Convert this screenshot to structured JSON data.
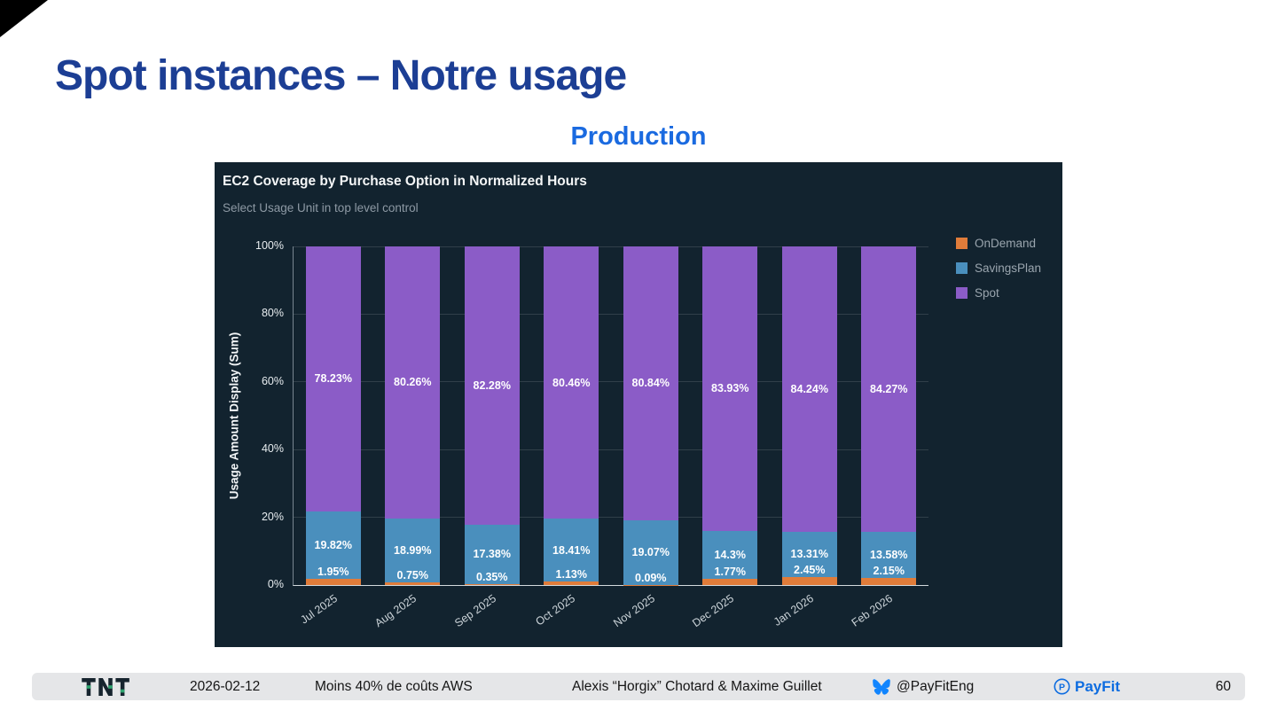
{
  "slide": {
    "title": "Spot instances – Notre usage",
    "subtitle": "Production"
  },
  "colors": {
    "title_navy": "#1c3e94",
    "subtitle_blue": "#1a6ae0",
    "panel_background": "#12232f",
    "payfit_blue": "#0d6ce0",
    "bluesky_blue": "#1185fe",
    "ondemand_orange": "#e07c3a",
    "savingsplan_blue": "#4a8fbd",
    "spot_purple": "#8b5cc7"
  },
  "chart_data": {
    "type": "bar",
    "stacked": true,
    "title": "EC2 Coverage by Purchase Option in Normalized Hours",
    "subtitle": "Select Usage Unit in top level control",
    "xlabel": "",
    "ylabel": "Usage Amount Display (Sum)",
    "ylim": [
      0,
      100
    ],
    "yticks": [
      "0%",
      "20%",
      "40%",
      "60%",
      "80%",
      "100%"
    ],
    "grid": true,
    "legend_position": "right",
    "categories": [
      "Jul 2025",
      "Aug 2025",
      "Sep 2025",
      "Oct 2025",
      "Nov 2025",
      "Dec 2025",
      "Jan 2026",
      "Feb 2026"
    ],
    "series": [
      {
        "name": "OnDemand",
        "color": "#e07c3a",
        "values": [
          1.95,
          0.75,
          0.35,
          1.13,
          0.09,
          1.77,
          2.45,
          2.15
        ],
        "labels": [
          "1.95%",
          "0.75%",
          "0.35%",
          "1.13%",
          "0.09%",
          "1.77%",
          "2.45%",
          "2.15%"
        ]
      },
      {
        "name": "SavingsPlan",
        "color": "#4a8fbd",
        "values": [
          19.82,
          18.99,
          17.38,
          18.41,
          19.07,
          14.3,
          13.31,
          13.58
        ],
        "labels": [
          "19.82%",
          "18.99%",
          "17.38%",
          "18.41%",
          "19.07%",
          "14.3%",
          "13.31%",
          "13.58%"
        ]
      },
      {
        "name": "Spot",
        "color": "#8b5cc7",
        "values": [
          78.23,
          80.26,
          82.28,
          80.46,
          80.84,
          83.93,
          84.24,
          84.27
        ],
        "labels": [
          "78.23%",
          "80.26%",
          "82.28%",
          "80.46%",
          "80.84%",
          "83.93%",
          "84.24%",
          "84.27%"
        ]
      }
    ],
    "legend": [
      "OnDemand",
      "SavingsPlan",
      "Spot"
    ]
  },
  "footer": {
    "logo": "TNT",
    "date": "2026-02-12",
    "talk": "Moins 40% de coûts AWS",
    "authors": "Alexis “Horgix” Chotard & Maxime Guillet",
    "social": "@PayFitEng",
    "brand": "PayFit",
    "page": "60"
  }
}
